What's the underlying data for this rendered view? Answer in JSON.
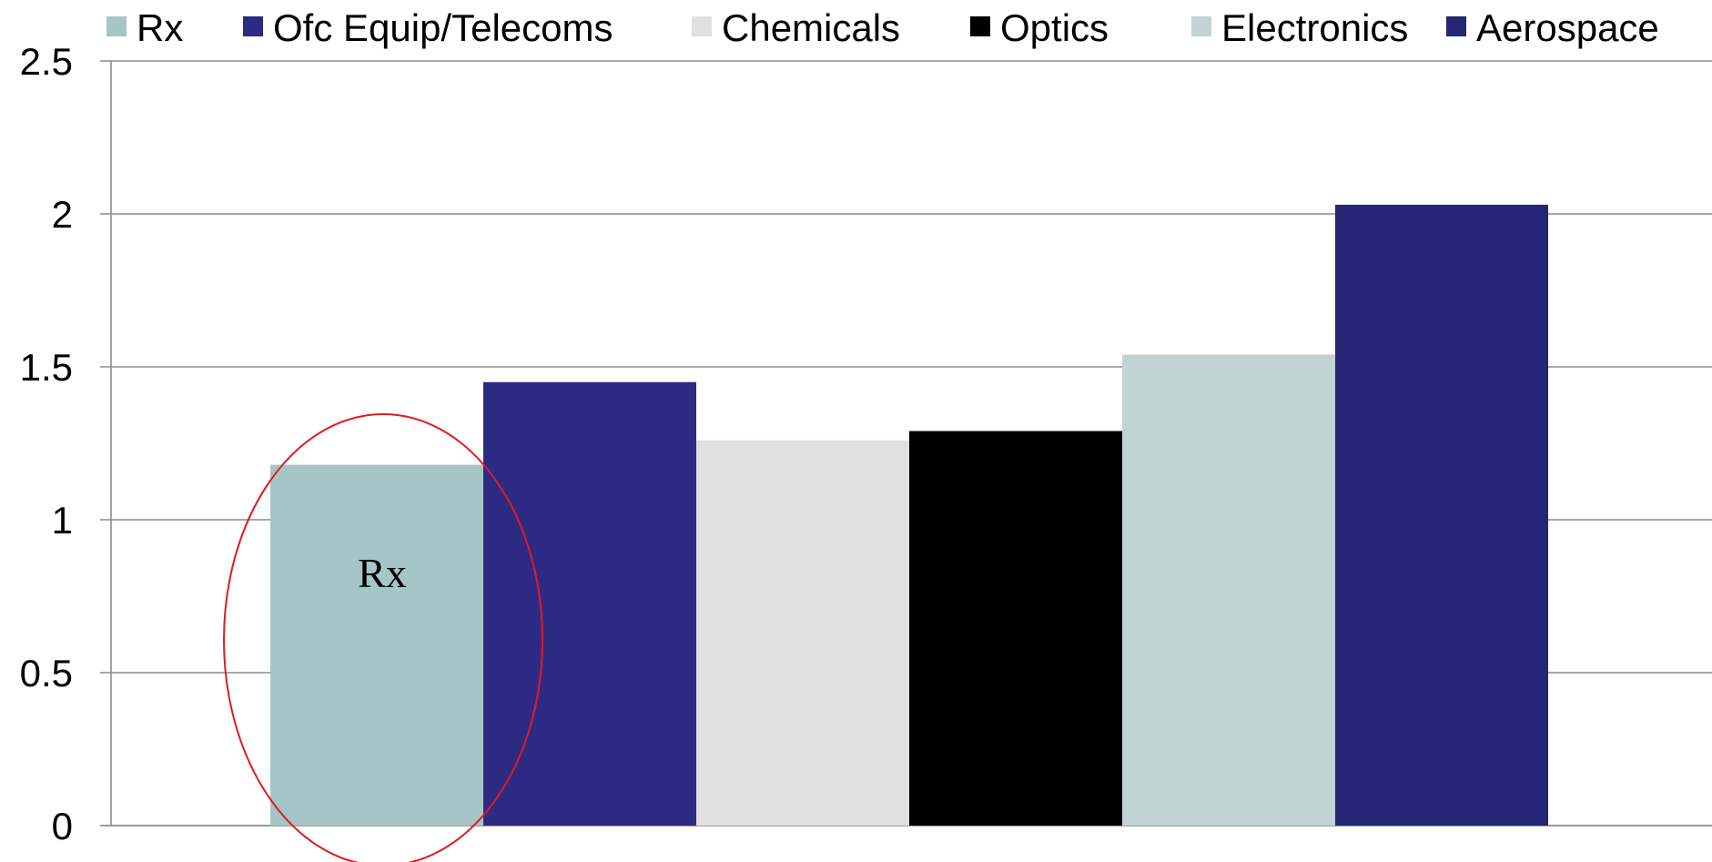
{
  "chart_data": {
    "type": "bar",
    "categories": [
      "Rx",
      "Ofc Equip/Telecoms",
      "Chemicals",
      "Optics",
      "Electronics",
      "Aerospace"
    ],
    "values": [
      1.18,
      1.45,
      1.26,
      1.29,
      1.54,
      2.03
    ],
    "colors": [
      "#a6c5c7",
      "#2d2a83",
      "#e0e0e0",
      "#000000",
      "#c1d3d5",
      "#262676"
    ],
    "ylim": [
      0,
      2.5
    ],
    "yticks": [
      "0",
      "0.5",
      "1",
      "1.5",
      "2",
      "2.5"
    ],
    "legend": {
      "position": "top",
      "entries": [
        "Rx",
        "Ofc Equip/Telecoms",
        "Chemicals",
        "Optics",
        "Electronics",
        "Aerospace"
      ]
    },
    "grid": true,
    "annotations": [
      {
        "text": "Rx",
        "target_category": "Rx",
        "shape": "ellipse",
        "color": "#e11b1b"
      }
    ],
    "title": "",
    "xlabel": "",
    "ylabel": ""
  }
}
